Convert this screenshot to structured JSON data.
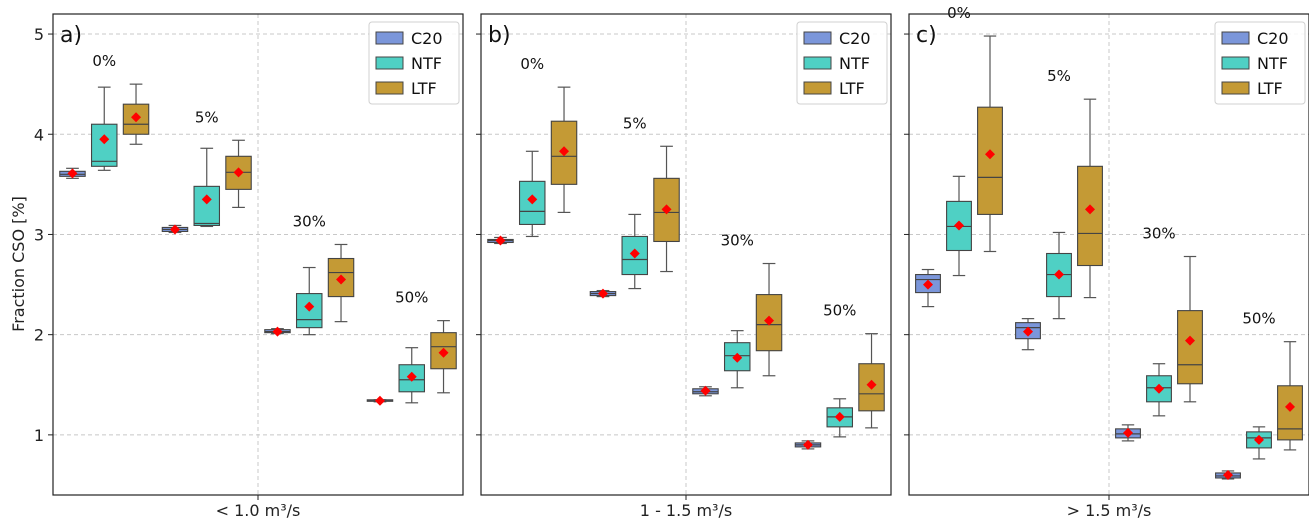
{
  "chart_data": [
    {
      "type": "box",
      "panel_label": "a)",
      "xlabel": "< 1.0 m³/s",
      "ylabel": "Fraction CSO [%]",
      "ylim": [
        0.4,
        5.2
      ],
      "yticks": [
        1,
        2,
        3,
        4,
        5
      ],
      "grid": true,
      "legend_position": "top-right",
      "series_names": [
        "C20",
        "NTF",
        "LTF"
      ],
      "colors": [
        "#7b96da",
        "#4fd0c4",
        "#c49a35"
      ],
      "mean_marker_color": "#ff0000",
      "groups": [
        {
          "label": "0%",
          "boxes": [
            {
              "series": "C20",
              "min": 3.56,
              "q1": 3.58,
              "median": 3.6,
              "q3": 3.63,
              "max": 3.66,
              "mean": 3.61
            },
            {
              "series": "NTF",
              "min": 3.64,
              "q1": 3.68,
              "median": 3.73,
              "q3": 4.1,
              "max": 4.47,
              "mean": 3.95
            },
            {
              "series": "LTF",
              "min": 3.9,
              "q1": 4.0,
              "median": 4.1,
              "q3": 4.3,
              "max": 4.5,
              "mean": 4.17
            }
          ]
        },
        {
          "label": "5%",
          "boxes": [
            {
              "series": "C20",
              "min": 3.02,
              "q1": 3.03,
              "median": 3.05,
              "q3": 3.07,
              "max": 3.09,
              "mean": 3.05
            },
            {
              "series": "NTF",
              "min": 3.08,
              "q1": 3.09,
              "median": 3.11,
              "q3": 3.48,
              "max": 3.86,
              "mean": 3.35
            },
            {
              "series": "LTF",
              "min": 3.27,
              "q1": 3.45,
              "median": 3.62,
              "q3": 3.78,
              "max": 3.94,
              "mean": 3.62
            }
          ]
        },
        {
          "label": "30%",
          "boxes": [
            {
              "series": "C20",
              "min": 2.01,
              "q1": 2.02,
              "median": 2.03,
              "q3": 2.05,
              "max": 2.06,
              "mean": 2.03
            },
            {
              "series": "NTF",
              "min": 2.0,
              "q1": 2.07,
              "median": 2.15,
              "q3": 2.41,
              "max": 2.67,
              "mean": 2.28
            },
            {
              "series": "LTF",
              "min": 2.13,
              "q1": 2.38,
              "median": 2.62,
              "q3": 2.76,
              "max": 2.9,
              "mean": 2.55
            }
          ]
        },
        {
          "label": "50%",
          "boxes": [
            {
              "series": "C20",
              "min": 1.33,
              "q1": 1.34,
              "median": 1.34,
              "q3": 1.35,
              "max": 1.35,
              "mean": 1.34
            },
            {
              "series": "NTF",
              "min": 1.32,
              "q1": 1.43,
              "median": 1.55,
              "q3": 1.7,
              "max": 1.87,
              "mean": 1.58
            },
            {
              "series": "LTF",
              "min": 1.42,
              "q1": 1.66,
              "median": 1.88,
              "q3": 2.02,
              "max": 2.14,
              "mean": 1.82
            }
          ]
        }
      ]
    },
    {
      "type": "box",
      "panel_label": "b)",
      "xlabel": "1 - 1.5 m³/s",
      "ylim": [
        0.4,
        5.2
      ],
      "yticks": [
        1,
        2,
        3,
        4,
        5
      ],
      "grid": true,
      "legend_position": "top-right",
      "series_names": [
        "C20",
        "NTF",
        "LTF"
      ],
      "colors": [
        "#7b96da",
        "#4fd0c4",
        "#c49a35"
      ],
      "mean_marker_color": "#ff0000",
      "groups": [
        {
          "label": "0%",
          "boxes": [
            {
              "series": "C20",
              "min": 2.91,
              "q1": 2.92,
              "median": 2.94,
              "q3": 2.95,
              "max": 2.97,
              "mean": 2.94
            },
            {
              "series": "NTF",
              "min": 2.98,
              "q1": 3.1,
              "median": 3.23,
              "q3": 3.53,
              "max": 3.83,
              "mean": 3.35
            },
            {
              "series": "LTF",
              "min": 3.22,
              "q1": 3.5,
              "median": 3.78,
              "q3": 4.13,
              "max": 4.47,
              "mean": 3.83
            }
          ]
        },
        {
          "label": "5%",
          "boxes": [
            {
              "series": "C20",
              "min": 2.38,
              "q1": 2.39,
              "median": 2.41,
              "q3": 2.43,
              "max": 2.44,
              "mean": 2.41
            },
            {
              "series": "NTF",
              "min": 2.46,
              "q1": 2.6,
              "median": 2.75,
              "q3": 2.98,
              "max": 3.2,
              "mean": 2.81
            },
            {
              "series": "LTF",
              "min": 2.63,
              "q1": 2.93,
              "median": 3.22,
              "q3": 3.56,
              "max": 3.88,
              "mean": 3.25
            }
          ]
        },
        {
          "label": "30%",
          "boxes": [
            {
              "series": "C20",
              "min": 1.39,
              "q1": 1.41,
              "median": 1.43,
              "q3": 1.46,
              "max": 1.48,
              "mean": 1.44
            },
            {
              "series": "NTF",
              "min": 1.47,
              "q1": 1.64,
              "median": 1.79,
              "q3": 1.92,
              "max": 2.04,
              "mean": 1.77
            },
            {
              "series": "LTF",
              "min": 1.59,
              "q1": 1.84,
              "median": 2.1,
              "q3": 2.4,
              "max": 2.71,
              "mean": 2.14
            }
          ]
        },
        {
          "label": "50%",
          "boxes": [
            {
              "series": "C20",
              "min": 0.86,
              "q1": 0.88,
              "median": 0.9,
              "q3": 0.92,
              "max": 0.94,
              "mean": 0.9
            },
            {
              "series": "NTF",
              "min": 0.98,
              "q1": 1.08,
              "median": 1.18,
              "q3": 1.27,
              "max": 1.36,
              "mean": 1.18
            },
            {
              "series": "LTF",
              "min": 1.07,
              "q1": 1.24,
              "median": 1.41,
              "q3": 1.71,
              "max": 2.01,
              "mean": 1.5
            }
          ]
        }
      ]
    },
    {
      "type": "box",
      "panel_label": "c)",
      "xlabel": "> 1.5 m³/s",
      "ylim": [
        0.4,
        5.2
      ],
      "yticks": [
        1,
        2,
        3,
        4,
        5
      ],
      "grid": true,
      "legend_position": "top-right",
      "series_names": [
        "C20",
        "NTF",
        "LTF"
      ],
      "colors": [
        "#7b96da",
        "#4fd0c4",
        "#c49a35"
      ],
      "mean_marker_color": "#ff0000",
      "groups": [
        {
          "label": "0%",
          "boxes": [
            {
              "series": "C20",
              "min": 2.28,
              "q1": 2.42,
              "median": 2.55,
              "q3": 2.6,
              "max": 2.65,
              "mean": 2.5
            },
            {
              "series": "NTF",
              "min": 2.59,
              "q1": 2.84,
              "median": 3.08,
              "q3": 3.33,
              "max": 3.58,
              "mean": 3.09
            },
            {
              "series": "LTF",
              "min": 2.83,
              "q1": 3.2,
              "median": 3.57,
              "q3": 4.27,
              "max": 4.98,
              "mean": 3.8
            }
          ]
        },
        {
          "label": "5%",
          "boxes": [
            {
              "series": "C20",
              "min": 1.85,
              "q1": 1.96,
              "median": 2.07,
              "q3": 2.12,
              "max": 2.16,
              "mean": 2.03
            },
            {
              "series": "NTF",
              "min": 2.16,
              "q1": 2.38,
              "median": 2.6,
              "q3": 2.81,
              "max": 3.02,
              "mean": 2.6
            },
            {
              "series": "LTF",
              "min": 2.37,
              "q1": 2.69,
              "median": 3.01,
              "q3": 3.68,
              "max": 4.35,
              "mean": 3.25
            }
          ]
        },
        {
          "label": "30%",
          "boxes": [
            {
              "series": "C20",
              "min": 0.94,
              "q1": 0.97,
              "median": 1.01,
              "q3": 1.06,
              "max": 1.1,
              "mean": 1.02
            },
            {
              "series": "NTF",
              "min": 1.19,
              "q1": 1.33,
              "median": 1.47,
              "q3": 1.59,
              "max": 1.71,
              "mean": 1.46
            },
            {
              "series": "LTF",
              "min": 1.33,
              "q1": 1.51,
              "median": 1.7,
              "q3": 2.24,
              "max": 2.78,
              "mean": 1.94
            }
          ]
        },
        {
          "label": "50%",
          "boxes": [
            {
              "series": "C20",
              "min": 0.56,
              "q1": 0.57,
              "median": 0.59,
              "q3": 0.62,
              "max": 0.64,
              "mean": 0.6
            },
            {
              "series": "NTF",
              "min": 0.76,
              "q1": 0.87,
              "median": 0.97,
              "q3": 1.03,
              "max": 1.08,
              "mean": 0.95
            },
            {
              "series": "LTF",
              "min": 0.85,
              "q1": 0.95,
              "median": 1.06,
              "q3": 1.49,
              "max": 1.93,
              "mean": 1.28
            }
          ]
        }
      ]
    }
  ]
}
